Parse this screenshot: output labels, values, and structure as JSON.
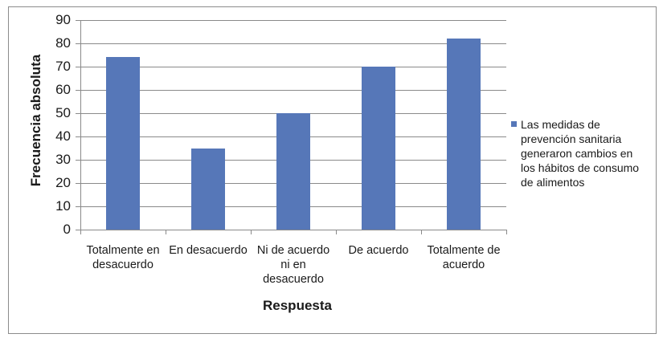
{
  "chart_data": {
    "type": "bar",
    "title": "",
    "xlabel": "Respuesta",
    "ylabel": "Frecuencia absoluta",
    "ylim": [
      0,
      90
    ],
    "yticks": [
      0,
      10,
      20,
      30,
      40,
      50,
      60,
      70,
      80,
      90
    ],
    "grid": true,
    "legend_position": "right",
    "categories": [
      "Totalmente en desacuerdo",
      "En desacuerdo",
      "Ni de acuerdo ni en desacuerdo",
      "De acuerdo",
      "Totalmente de acuerdo"
    ],
    "series": [
      {
        "name": "Las medidas de prevención sanitaria generaron cambios en los hábitos de consumo de alimentos",
        "color": "#5677b8",
        "values": [
          74,
          35,
          50,
          70,
          82
        ]
      }
    ]
  },
  "axis": {
    "ylabel": "Frecuencia absoluta",
    "xlabel": "Respuesta",
    "yticks": [
      "90",
      "80",
      "70",
      "60",
      "50",
      "40",
      "30",
      "20",
      "10",
      "0"
    ]
  },
  "categories_display": [
    [
      "Totalmente en",
      "desacuerdo"
    ],
    [
      "En desacuerdo"
    ],
    [
      "Ni de acuerdo",
      "ni en",
      "desacuerdo"
    ],
    [
      "De acuerdo"
    ],
    [
      "Totalmente de",
      "acuerdo"
    ]
  ],
  "legend": {
    "label": "Las medidas de prevención sanitaria generaron cambios en los hábitos de consumo de alimentos"
  }
}
